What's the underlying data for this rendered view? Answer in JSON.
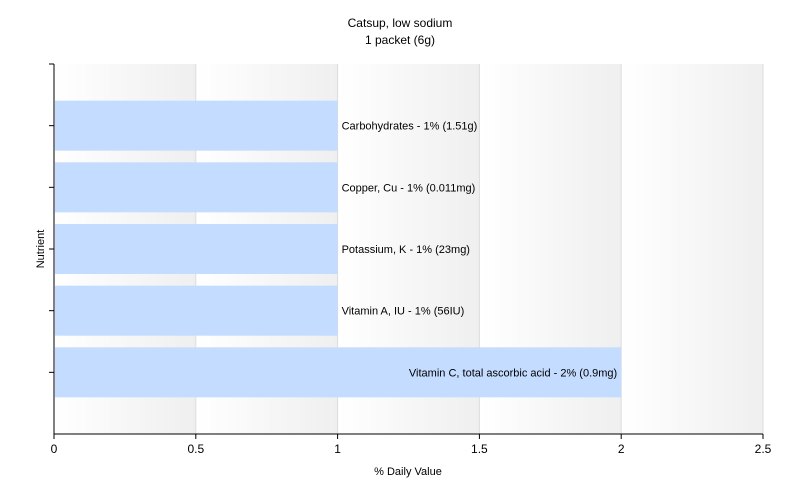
{
  "chart_data": {
    "type": "bar",
    "orientation": "horizontal",
    "title": "Catsup, low sodium",
    "subtitle": "1 packet (6g)",
    "xlabel": "% Daily Value",
    "ylabel": "Nutrient",
    "xlim": [
      0,
      2.5
    ],
    "x_ticks": [
      "0",
      "0.5",
      "1",
      "1.5",
      "2",
      "2.5"
    ],
    "grid": "vertical",
    "bar_color": "#c4dcff",
    "bars": [
      {
        "label": "Carbohydrates - 1% (1.51g)",
        "value": 1
      },
      {
        "label": "Copper, Cu - 1% (0.011mg)",
        "value": 1
      },
      {
        "label": "Potassium, K - 1% (23mg)",
        "value": 1
      },
      {
        "label": "Vitamin A, IU - 1% (56IU)",
        "value": 1
      },
      {
        "label": "Vitamin C, total ascorbic acid - 2% (0.9mg)",
        "value": 2
      }
    ]
  }
}
